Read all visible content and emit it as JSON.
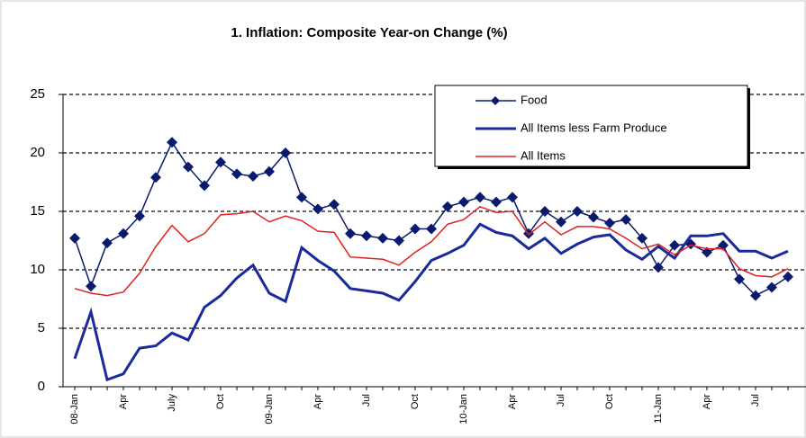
{
  "chart_data": {
    "type": "line",
    "title": "1. Inflation: Composite Year-on Change (%)",
    "categories": [
      "08-Jan",
      null,
      null,
      "Apr",
      null,
      null,
      "July",
      null,
      null,
      "Oct",
      null,
      null,
      "09-Jan",
      null,
      null,
      "Apr",
      null,
      null,
      "Jul",
      null,
      null,
      "Oct",
      null,
      null,
      "10-Jan",
      null,
      null,
      "Apr",
      null,
      null,
      "Jul",
      null,
      null,
      "Oct",
      null,
      null,
      "11-Jan",
      null,
      null,
      "Apr",
      null,
      null,
      "Jul",
      null,
      null
    ],
    "series": [
      {
        "name": "Food",
        "color": "#0a1a6e",
        "marker": true,
        "values": [
          12.7,
          8.6,
          12.3,
          13.1,
          14.6,
          17.9,
          20.9,
          18.8,
          17.2,
          19.2,
          18.2,
          18,
          18.4,
          20,
          16.2,
          15.2,
          15.6,
          13.1,
          12.9,
          12.7,
          12.5,
          13.5,
          13.5,
          15.4,
          15.8,
          16.2,
          15.8,
          16.2,
          13.1,
          15,
          14.1,
          15,
          14.5,
          14,
          14.3,
          12.7,
          10.2,
          12.1,
          12.2,
          11.5,
          12.1,
          9.2,
          7.8,
          8.5,
          9.4
        ]
      },
      {
        "name": "All Items less Farm Produce",
        "color": "#1a2a9a",
        "marker": false,
        "values": [
          2.4,
          6.4,
          0.6,
          1.1,
          3.3,
          3.5,
          4.6,
          4,
          6.8,
          7.8,
          9.3,
          10.4,
          8,
          7.3,
          11.9,
          10.8,
          9.9,
          8.4,
          8.2,
          8,
          7.4,
          9,
          10.8,
          11.4,
          12.1,
          13.9,
          13.2,
          12.9,
          11.8,
          12.7,
          11.4,
          12.2,
          12.8,
          13,
          11.7,
          10.9,
          12,
          11,
          12.9,
          12.9,
          13.1,
          11.6,
          11.6,
          11,
          11.6
        ]
      },
      {
        "name": "All Items",
        "color": "#e02020",
        "marker": false,
        "values": [
          8.4,
          8,
          7.8,
          8.1,
          9.7,
          12,
          13.8,
          12.4,
          13.1,
          14.7,
          14.8,
          15,
          14.1,
          14.6,
          14.2,
          13.3,
          13.2,
          11.1,
          11,
          10.9,
          10.4,
          11.5,
          12.4,
          13.9,
          14.3,
          15.4,
          14.9,
          15,
          13,
          14.1,
          13,
          13.7,
          13.7,
          13.5,
          12.7,
          11.8,
          12.2,
          11.3,
          12.1,
          11.8,
          11.8,
          10.1,
          9.5,
          9.4,
          10.1
        ]
      }
    ],
    "ylim": [
      0,
      25
    ],
    "yticks": [
      0,
      5,
      10,
      15,
      20,
      25
    ],
    "grid": true,
    "legend": "top-right"
  }
}
